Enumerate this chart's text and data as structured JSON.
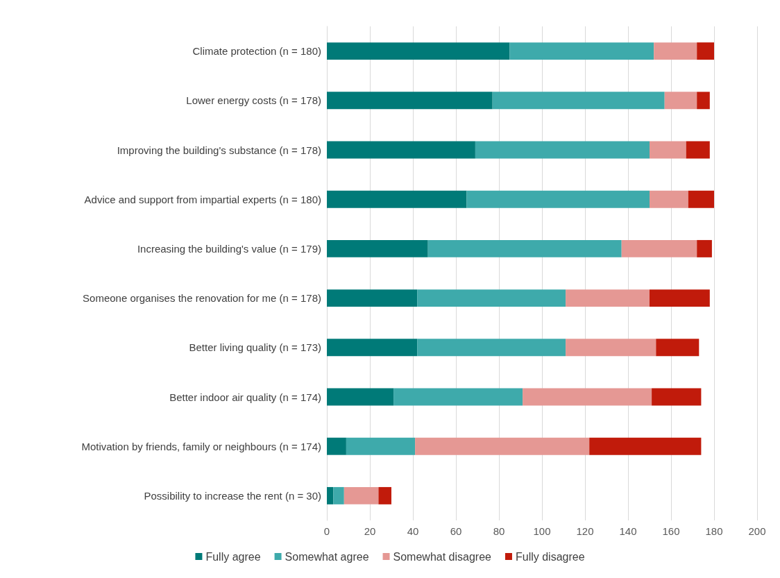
{
  "chart_data": {
    "type": "bar",
    "orientation": "horizontal",
    "stacked": true,
    "categories": [
      "Climate protection (n = 180)",
      "Lower energy costs (n = 178)",
      "Improving the building's substance (n = 178)",
      "Advice and support from impartial experts (n = 180)",
      "Increasing the building's value (n = 179)",
      "Someone organises the renovation for me (n = 178)",
      "Better living quality (n = 173)",
      "Better indoor air quality (n = 174)",
      "Motivation by friends, family or neighbours (n = 174)",
      "Possibility to increase the rent (n = 30)"
    ],
    "series": [
      {
        "name": "Fully agree",
        "color": "#007a78",
        "values": [
          85,
          77,
          69,
          65,
          47,
          42,
          42,
          31,
          9,
          3
        ]
      },
      {
        "name": "Somewhat agree",
        "color": "#3eaaab",
        "values": [
          67,
          80,
          81,
          85,
          90,
          69,
          69,
          60,
          32,
          5
        ]
      },
      {
        "name": "Somewhat disagree",
        "color": "#e59894",
        "values": [
          20,
          15,
          17,
          18,
          35,
          39,
          42,
          60,
          81,
          16
        ]
      },
      {
        "name": "Fully disagree",
        "color": "#c11b0b",
        "values": [
          8,
          6,
          11,
          12,
          7,
          28,
          20,
          23,
          52,
          6
        ]
      }
    ],
    "xlim": [
      0,
      200
    ],
    "xticks": [
      0,
      20,
      40,
      60,
      80,
      100,
      120,
      140,
      160,
      180,
      200
    ],
    "grid": "x",
    "legend": "bottom"
  }
}
